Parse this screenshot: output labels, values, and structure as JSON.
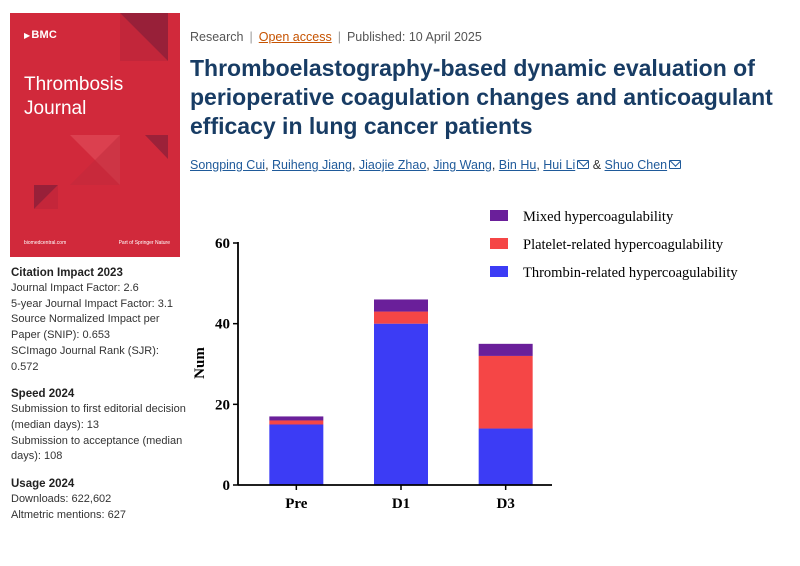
{
  "cover": {
    "publisher": "BMC",
    "journal_line1": "Thrombosis",
    "journal_line2": "Journal",
    "footer_left": "biomedcentral.com",
    "footer_right": "Part of Springer Nature",
    "background": "#d1293b"
  },
  "sidebar": {
    "citation": {
      "heading": "Citation Impact 2023",
      "lines": [
        "Journal Impact Factor: 2.6",
        "5-year Journal Impact Factor: 3.1",
        "Source Normalized Impact per Paper (SNIP): 0.653",
        "SCImago Journal Rank (SJR): 0.572"
      ]
    },
    "speed": {
      "heading": "Speed 2024",
      "lines": [
        "Submission to first editorial decision (median days): 13",
        "Submission to acceptance (median days): 108"
      ]
    },
    "usage": {
      "heading": "Usage 2024",
      "lines": [
        "Downloads: 622,602",
        "Altmetric mentions: 627"
      ]
    }
  },
  "article": {
    "type": "Research",
    "access": "Open access",
    "published": "Published: 10 April 2025",
    "title": "Thromboelastography-based dynamic evaluation of perioperative coagulation changes and anticoagulant efficacy in lung cancer patients",
    "authors": [
      {
        "name": "Songping Cui",
        "mail": false
      },
      {
        "name": "Ruiheng Jiang",
        "mail": false
      },
      {
        "name": "Jiaojie Zhao",
        "mail": false
      },
      {
        "name": "Jing Wang",
        "mail": false
      },
      {
        "name": "Bin Hu",
        "mail": false
      },
      {
        "name": "Hui Li",
        "mail": true
      },
      {
        "name": "Shuo Chen",
        "mail": true
      }
    ],
    "ampersand": "&"
  },
  "chart_data": {
    "type": "bar",
    "stacked": true,
    "categories": [
      "Pre",
      "D1",
      "D3"
    ],
    "series": [
      {
        "name": "Thrombin-related hypercoagulability",
        "values": [
          15,
          40,
          14
        ],
        "color": "#3c3cf5"
      },
      {
        "name": "Platelet-related hypercoagulability",
        "values": [
          1,
          3,
          18
        ],
        "color": "#f54646"
      },
      {
        "name": "Mixed hypercoagulability",
        "values": [
          1,
          3,
          3
        ],
        "color": "#6a1f9a"
      }
    ],
    "legend_order": [
      "Mixed hypercoagulability",
      "Platelet-related hypercoagulability",
      "Thrombin-related hypercoagulability"
    ],
    "ylabel": "Num",
    "xlabel": "",
    "title": "",
    "ylim": [
      0,
      60
    ],
    "yticks": [
      0,
      20,
      40,
      60
    ],
    "grid": false,
    "legend_position": "top-right"
  }
}
